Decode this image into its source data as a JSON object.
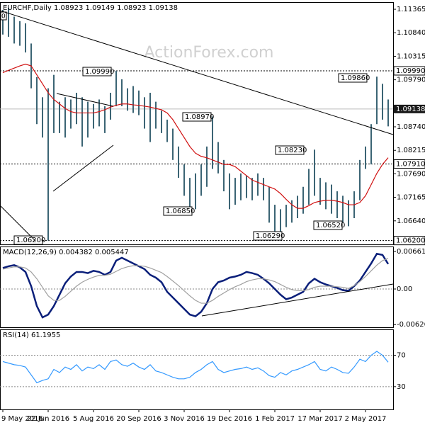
{
  "chart_data": [
    {
      "type": "hilo",
      "title": "EURCHF,Daily  1.08923 1.09149 1.08923 1.09138",
      "watermark": "ActionForex.com",
      "corner_label": "0",
      "categories": [
        "9 May 2016",
        null,
        null,
        null,
        null,
        null,
        null,
        null,
        "22 Jun 2016",
        null,
        null,
        null,
        null,
        null,
        null,
        null,
        "5 Aug 2016",
        null,
        null,
        null,
        null,
        null,
        null,
        null,
        "20 Sep 2016",
        null,
        null,
        null,
        null,
        null,
        null,
        null,
        "3 Nov 2016",
        null,
        null,
        null,
        null,
        null,
        null,
        null,
        "19 Dec 2016",
        null,
        null,
        null,
        null,
        null,
        null,
        null,
        "1 Feb 2017",
        null,
        null,
        null,
        null,
        null,
        null,
        null,
        "17 Mar 2017",
        null,
        null,
        null,
        null,
        null,
        null,
        null,
        "2 May 2017",
        null,
        null,
        null,
        null
      ],
      "high": [
        1.1135,
        1.114,
        1.112,
        1.111,
        1.1105,
        1.106,
        1.0985,
        1.094,
        1.096,
        1.099,
        1.093,
        1.094,
        1.0935,
        1.095,
        1.094,
        1.093,
        1.0925,
        1.0935,
        1.092,
        1.095,
        1.0999,
        1.098,
        1.096,
        1.0965,
        1.0955,
        1.094,
        1.095,
        1.093,
        1.091,
        1.089,
        1.087,
        1.083,
        1.079,
        1.076,
        1.077,
        1.079,
        1.083,
        1.0897,
        1.084,
        1.08,
        1.077,
        1.076,
        1.077,
        1.0765,
        1.076,
        1.077,
        1.076,
        1.074,
        1.07,
        1.069,
        1.07,
        1.071,
        1.072,
        1.074,
        1.078,
        1.0823,
        1.076,
        1.075,
        1.0745,
        1.073,
        1.072,
        1.071,
        1.073,
        1.08,
        1.083,
        1.088,
        1.0986,
        1.097,
        1.0935
      ],
      "low": [
        1.108,
        1.1075,
        1.106,
        1.1055,
        1.104,
        1.096,
        1.088,
        1.085,
        1.062,
        1.086,
        1.086,
        1.085,
        1.087,
        1.088,
        1.083,
        1.085,
        1.087,
        1.0875,
        1.086,
        1.089,
        1.092,
        1.092,
        1.091,
        1.0905,
        1.09,
        1.087,
        1.084,
        1.087,
        1.086,
        1.084,
        1.08,
        1.076,
        1.072,
        1.0685,
        1.069,
        1.072,
        1.074,
        1.078,
        1.077,
        1.073,
        1.069,
        1.07,
        1.071,
        1.0715,
        1.071,
        1.072,
        1.071,
        1.066,
        1.0629,
        1.064,
        1.065,
        1.066,
        1.067,
        1.068,
        1.07,
        1.072,
        1.07,
        1.069,
        1.068,
        1.067,
        1.066,
        1.0652,
        1.067,
        1.071,
        1.078,
        1.079,
        1.088,
        1.089,
        1.0875
      ],
      "color": "#3b6474",
      "series": [
        {
          "color": "#d01010",
          "values": [
            1.0995,
            1.1,
            1.1005,
            1.101,
            1.1014,
            1.101,
            1.099,
            1.097,
            1.095,
            1.0935,
            1.0925,
            1.0915,
            1.0908,
            1.0905,
            1.0905,
            1.0905,
            1.0905,
            1.0908,
            1.0912,
            1.0918,
            1.0922,
            1.0925,
            1.0925,
            1.0923,
            1.0922,
            1.092,
            1.0918,
            1.0915,
            1.0912,
            1.0905,
            1.089,
            1.087,
            1.085,
            1.083,
            1.0815,
            1.0808,
            1.0805,
            1.08,
            1.0795,
            1.079,
            1.079,
            1.0785,
            1.0775,
            1.0765,
            1.0755,
            1.075,
            1.0745,
            1.074,
            1.0735,
            1.0725,
            1.0712,
            1.07,
            1.0692,
            1.0692,
            1.0698,
            1.0705,
            1.0708,
            1.071,
            1.071,
            1.0708,
            1.0705,
            1.07,
            1.07,
            1.0705,
            1.072,
            1.0745,
            1.077,
            1.079,
            1.0805
          ]
        }
      ],
      "ylim": [
        1.06115,
        1.11524
      ],
      "yticks": [
        1.11365,
        {
          "value": 1.1084,
          "label": "1.10840"
        },
        1.10315,
        {
          "value": 1.0979,
          "label": "1.09790"
        },
        {
          "value": 1.0874,
          "label": "1.08740"
        },
        1.08215,
        {
          "value": 1.0769,
          "label": "1.07690"
        },
        1.07165,
        {
          "value": 1.0664,
          "label": "1.06640"
        }
      ],
      "levels": [
        {
          "value": 1.0999,
          "label": "1.09990"
        },
        {
          "value": 1.0791,
          "label": "1.07910"
        },
        {
          "value": 1.062,
          "label": "1.06200"
        }
      ],
      "last": {
        "value": 1.09138,
        "label": "1.09138"
      },
      "annotations": [
        {
          "value": 1.0999,
          "label": "1.09990"
        },
        {
          "value": 1.0897,
          "label": "1.08970"
        },
        {
          "value": 1.0685,
          "label": "1.06850"
        },
        {
          "value": 1.0823,
          "label": "1.08230"
        },
        {
          "value": 1.0629,
          "label": "1.06290"
        },
        {
          "value": 1.0652,
          "label": "1.06520"
        },
        {
          "value": 1.0986,
          "label": "1.09860"
        },
        {
          "value": 1.062,
          "label": "1.06200"
        }
      ]
    },
    {
      "type": "line",
      "title": "MACD(12,26,9) 0.004382 0.005447",
      "series": [
        {
          "color": "#0a1f7a",
          "values": [
            0.0037,
            0.004,
            0.0042,
            0.0038,
            0.003,
            0.0005,
            -0.003,
            -0.005,
            -0.0045,
            -0.003,
            -0.001,
            0.001,
            0.0022,
            0.003,
            0.003,
            0.0028,
            0.0032,
            0.003,
            0.0025,
            0.003,
            0.005,
            0.0055,
            0.005,
            0.0045,
            0.004,
            0.0035,
            0.0025,
            0.002,
            0.0012,
            -0.0005,
            -0.0015,
            -0.0025,
            -0.0035,
            -0.0045,
            -0.0048,
            -0.004,
            -0.0025,
            0,
            0.0012,
            0.0015,
            0.002,
            0.0022,
            0.0025,
            0.003,
            0.0028,
            0.0025,
            0.0018,
            0.001,
            0,
            -0.001,
            -0.0018,
            -0.0015,
            -0.001,
            -0.0005,
            0.001,
            0.0018,
            0.0012,
            0.0008,
            0.0005,
            0.0002,
            -0.0002,
            -0.0003,
            0.0005,
            0.0015,
            0.003,
            0.0045,
            0.0062,
            0.006,
            0.0044
          ]
        },
        {
          "color": "#a0a0a0",
          "values": [
            0.0035,
            0.0037,
            0.0039,
            0.0039,
            0.0037,
            0.003,
            0.0018,
            0.0003,
            -0.0012,
            -0.002,
            -0.002,
            -0.0013,
            -0.0004,
            0.0005,
            0.0012,
            0.0017,
            0.0021,
            0.0024,
            0.0024,
            0.0026,
            0.0031,
            0.0036,
            0.0039,
            0.0041,
            0.0041,
            0.004,
            0.0037,
            0.0033,
            0.0029,
            0.0022,
            0.0014,
            0.0006,
            -0.0003,
            -0.0012,
            -0.002,
            -0.0025,
            -0.0025,
            -0.002,
            -0.0013,
            -0.0007,
            -0.0001,
            0.0004,
            0.0008,
            0.0013,
            0.0016,
            0.0018,
            0.0018,
            0.0016,
            0.0013,
            0.0008,
            0.0003,
            -0.0001,
            -0.0003,
            -0.0003,
            -0.0001,
            0.0003,
            0.0005,
            0.0005,
            0.0005,
            0.0004,
            0.0003,
            0.0001,
            0.0006,
            0.0013,
            0.0022,
            0.0032,
            0.0042,
            0.005,
            0.0054
          ]
        }
      ],
      "ylim": [
        -0.00673,
        0.00748
      ],
      "yticks": [
        0.00661,
        {
          "value": 0,
          "label": "0.00"
        },
        -0.00626
      ],
      "zero_line": true
    },
    {
      "type": "line",
      "title": "RSI(14) 61.1955",
      "series": [
        {
          "color": "#3399ff",
          "values": [
            62,
            60,
            58,
            57,
            55,
            45,
            35,
            38,
            40,
            52,
            48,
            55,
            52,
            58,
            50,
            55,
            53,
            58,
            52,
            62,
            64,
            58,
            56,
            60,
            55,
            52,
            58,
            50,
            48,
            45,
            42,
            40,
            40,
            42,
            48,
            52,
            58,
            62,
            52,
            48,
            50,
            52,
            53,
            55,
            52,
            54,
            50,
            44,
            42,
            48,
            45,
            50,
            52,
            55,
            58,
            62,
            52,
            50,
            55,
            52,
            48,
            47,
            55,
            65,
            62,
            70,
            75,
            70,
            61.1955
          ]
        }
      ],
      "ylim": [
        1,
        103
      ],
      "yticks": [
        30,
        70
      ],
      "grid": true
    }
  ]
}
